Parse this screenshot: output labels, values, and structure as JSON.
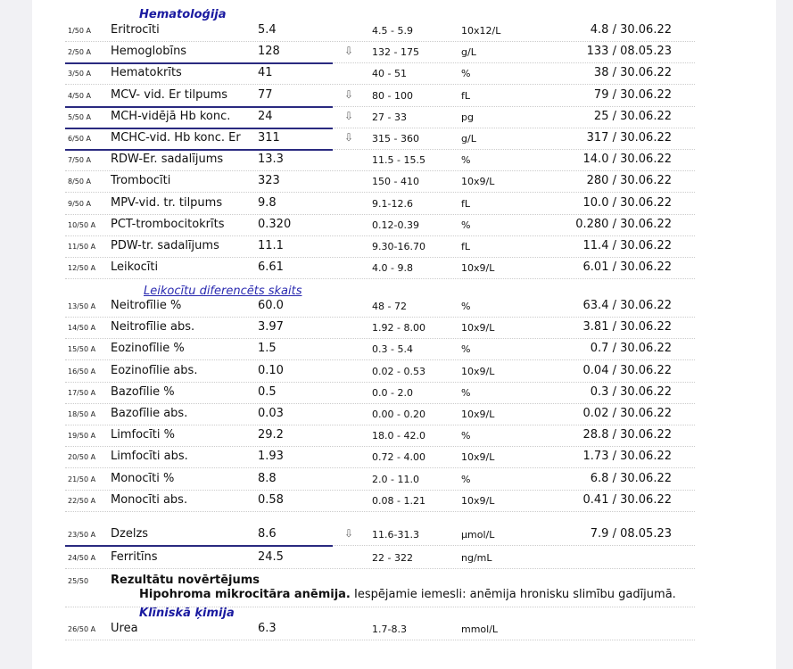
{
  "sections": {
    "hematology": "Hematoloģija",
    "differential": "Leikocītu diferencēts skaits",
    "chemistry": "Klīniskā ķimija"
  },
  "rows": [
    {
      "code": "1/50 A",
      "name": "Eritrocīti",
      "value": "5.4",
      "flag": "",
      "range": "4.5 - 5.9",
      "unit": "10x12/L",
      "previous": "4.8 / 30.06.22"
    },
    {
      "code": "2/50 A",
      "name": "Hemoglobīns",
      "value": "128",
      "flag": "⇩",
      "range": "132 - 175",
      "unit": "g/L",
      "previous": "133 / 08.05.23"
    },
    {
      "code": "3/50 A",
      "name": "Hematokrīts",
      "value": "41",
      "flag": "",
      "range": "40 - 51",
      "unit": "%",
      "previous": "38 / 30.06.22"
    },
    {
      "code": "4/50 A",
      "name": "MCV- vid. Er tilpums",
      "value": "77",
      "flag": "⇩",
      "range": "80 - 100",
      "unit": "fL",
      "previous": "79 / 30.06.22"
    },
    {
      "code": "5/50 A",
      "name": "MCH-vidējā Hb konc.",
      "value": "24",
      "flag": "⇩",
      "range": "27 - 33",
      "unit": "pg",
      "previous": "25 / 30.06.22"
    },
    {
      "code": "6/50 A",
      "name": "MCHC-vid. Hb konc. Er",
      "value": "311",
      "flag": "⇩",
      "range": "315 - 360",
      "unit": "g/L",
      "previous": "317 / 30.06.22"
    },
    {
      "code": "7/50 A",
      "name": "RDW-Er. sadalījums",
      "value": "13.3",
      "flag": "",
      "range": "11.5 - 15.5",
      "unit": "%",
      "previous": "14.0 / 30.06.22"
    },
    {
      "code": "8/50 A",
      "name": "Trombocīti",
      "value": "323",
      "flag": "",
      "range": "150 - 410",
      "unit": "10x9/L",
      "previous": "280 / 30.06.22"
    },
    {
      "code": "9/50 A",
      "name": "MPV-vid. tr. tilpums",
      "value": "9.8",
      "flag": "",
      "range": "9.1-12.6",
      "unit": "fL",
      "previous": "10.0 / 30.06.22"
    },
    {
      "code": "10/50 A",
      "name": "PCT-trombocitokrīts",
      "value": "0.320",
      "flag": "",
      "range": "0.12-0.39",
      "unit": "%",
      "previous": "0.280 / 30.06.22"
    },
    {
      "code": "11/50 A",
      "name": "PDW-tr. sadalījums",
      "value": "11.1",
      "flag": "",
      "range": "9.30-16.70",
      "unit": "fL",
      "previous": "11.4 / 30.06.22"
    },
    {
      "code": "12/50 A",
      "name": "Leikocīti",
      "value": "6.61",
      "flag": "",
      "range": "4.0 - 9.8",
      "unit": "10x9/L",
      "previous": "6.01 / 30.06.22"
    },
    {
      "code": "13/50 A",
      "name": "Neitrofīlie %",
      "value": "60.0",
      "flag": "",
      "range": "48 - 72",
      "unit": "%",
      "previous": "63.4 / 30.06.22"
    },
    {
      "code": "14/50 A",
      "name": "Neitrofīlie abs.",
      "value": "3.97",
      "flag": "",
      "range": "1.92 - 8.00",
      "unit": "10x9/L",
      "previous": "3.81 / 30.06.22"
    },
    {
      "code": "15/50 A",
      "name": "Eozinofīlie %",
      "value": "1.5",
      "flag": "",
      "range": "0.3 - 5.4",
      "unit": "%",
      "previous": "0.7 / 30.06.22"
    },
    {
      "code": "16/50 A",
      "name": "Eozinofīlie abs.",
      "value": "0.10",
      "flag": "",
      "range": "0.02 - 0.53",
      "unit": "10x9/L",
      "previous": "0.04 / 30.06.22"
    },
    {
      "code": "17/50 A",
      "name": "Bazofīlie %",
      "value": "0.5",
      "flag": "",
      "range": "0.0 - 2.0",
      "unit": "%",
      "previous": "0.3 / 30.06.22"
    },
    {
      "code": "18/50 A",
      "name": "Bazofīlie abs.",
      "value": "0.03",
      "flag": "",
      "range": "0.00 - 0.20",
      "unit": "10x9/L",
      "previous": "0.02 / 30.06.22"
    },
    {
      "code": "19/50 A",
      "name": "Limfocīti %",
      "value": "29.2",
      "flag": "",
      "range": "18.0 - 42.0",
      "unit": "%",
      "previous": "28.8 / 30.06.22"
    },
    {
      "code": "20/50 A",
      "name": "Limfocīti abs.",
      "value": "1.93",
      "flag": "",
      "range": "0.72 - 4.00",
      "unit": "10x9/L",
      "previous": "1.73 / 30.06.22"
    },
    {
      "code": "21/50 A",
      "name": "Monocīti %",
      "value": "8.8",
      "flag": "",
      "range": "2.0 - 11.0",
      "unit": "%",
      "previous": "6.8 / 30.06.22"
    },
    {
      "code": "22/50 A",
      "name": "Monocīti abs.",
      "value": "0.58",
      "flag": "",
      "range": "0.08 - 1.21",
      "unit": "10x9/L",
      "previous": "0.41 / 30.06.22"
    },
    {
      "code": "23/50 A",
      "name": "Dzelzs",
      "value": "8.6",
      "flag": "⇩",
      "range": "11.6-31.3",
      "unit": "µmol/L",
      "previous": "7.9 / 08.05.23"
    },
    {
      "code": "24/50 A",
      "name": "Ferritīns",
      "value": "24.5",
      "flag": "",
      "range": "22 - 322",
      "unit": "ng/mL",
      "previous": ""
    },
    {
      "code": "26/50 A",
      "name": "Urea",
      "value": "6.3",
      "flag": "",
      "range": "1.7-8.3",
      "unit": "mmol/L",
      "previous": ""
    }
  ],
  "assessment": {
    "code": "25/50",
    "title": "Rezultātu novērtējums",
    "diagnosis": "Hipohroma mikrocitāra anēmija.",
    "text": " Iespējamie iemesli: anēmija hronisku slimību gadījumā."
  }
}
